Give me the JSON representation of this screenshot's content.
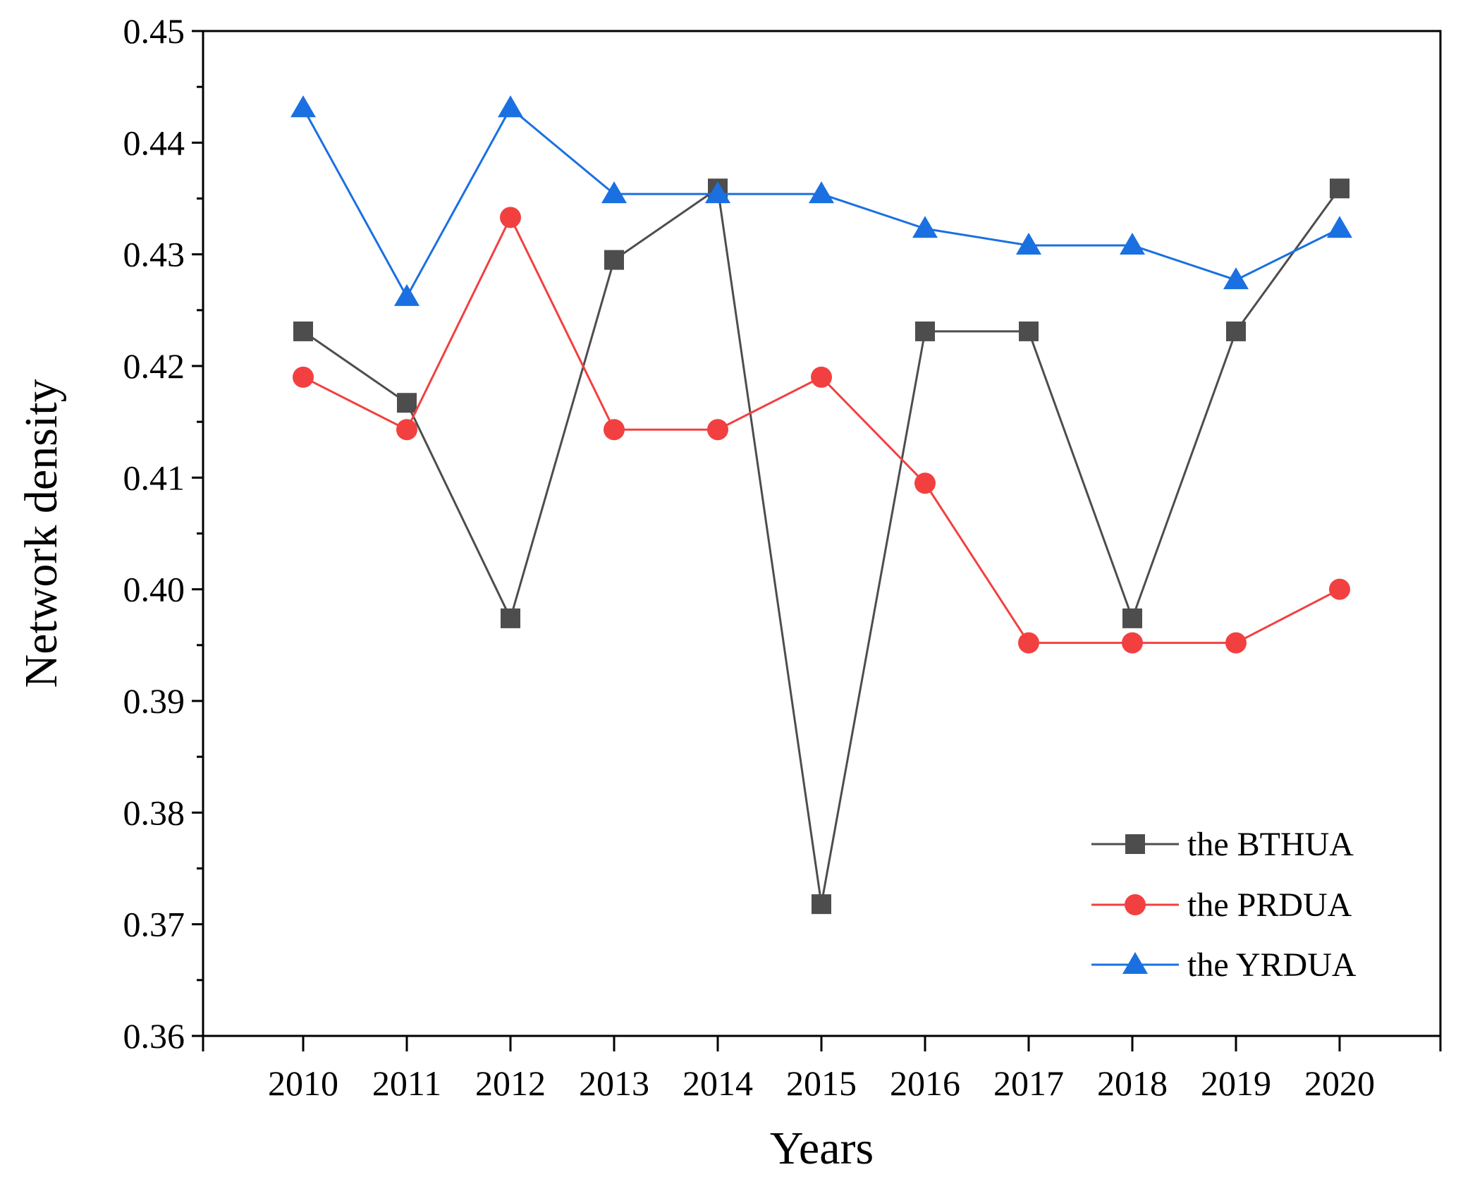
{
  "chart_data": {
    "type": "line",
    "title": "",
    "xlabel": "Years",
    "ylabel": "Network density",
    "categories": [
      "2010",
      "2011",
      "2012",
      "2013",
      "2014",
      "2015",
      "2016",
      "2017",
      "2018",
      "2019",
      "2020"
    ],
    "ylim": [
      0.36,
      0.45
    ],
    "yticks": [
      "0.36",
      "0.37",
      "0.38",
      "0.39",
      "0.40",
      "0.41",
      "0.42",
      "0.43",
      "0.44",
      "0.45"
    ],
    "grid": false,
    "legend_position": "bottom-right",
    "series": [
      {
        "name": "the BTHUA",
        "color": "#4d4d4d",
        "marker": "square",
        "values": [
          0.4231,
          0.4167,
          0.3974,
          0.4295,
          0.4359,
          0.3718,
          0.4231,
          0.4231,
          0.3974,
          0.4231,
          0.4359
        ]
      },
      {
        "name": "the PRDUA",
        "color": "#f24040",
        "marker": "circle",
        "values": [
          0.419,
          0.4143,
          0.4333,
          0.4143,
          0.4143,
          0.419,
          0.4095,
          0.3952,
          0.3952,
          0.3952,
          0.4
        ]
      },
      {
        "name": "the YRDUA",
        "color": "#1a70e0",
        "marker": "triangle",
        "values": [
          0.4431,
          0.4262,
          0.4431,
          0.4354,
          0.4354,
          0.4354,
          0.4323,
          0.4308,
          0.4308,
          0.4277,
          0.4323
        ]
      }
    ]
  }
}
